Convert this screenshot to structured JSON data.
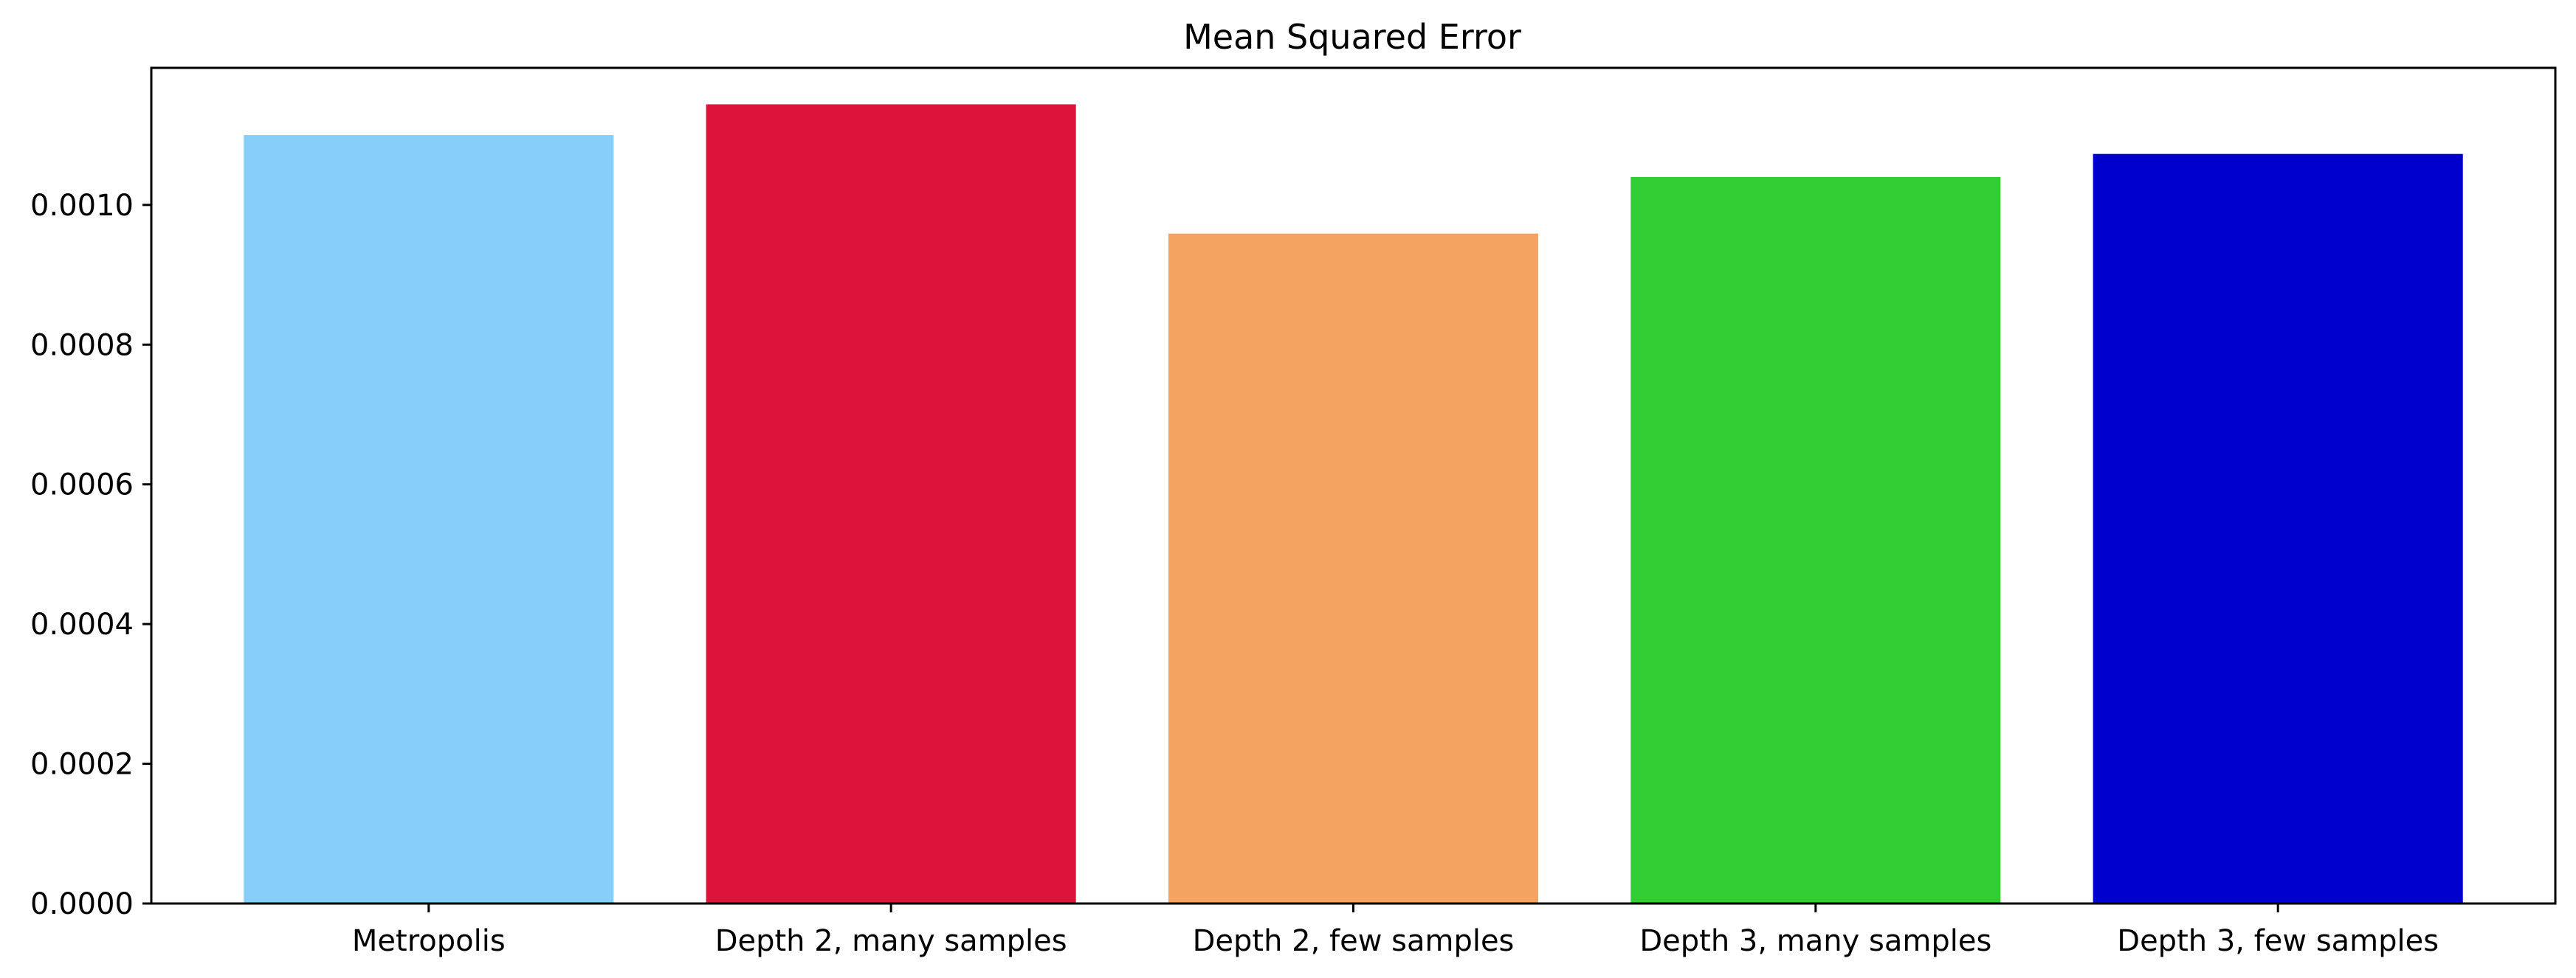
{
  "chart_data": {
    "type": "bar",
    "title": "Mean Squared Error",
    "xlabel": "",
    "ylabel": "",
    "categories": [
      "Metropolis",
      "Depth 2, many samples",
      "Depth 2, few samples",
      "Depth 3, many samples",
      "Depth 3, few samples"
    ],
    "values": [
      0.0011,
      0.001144,
      0.000959,
      0.00104,
      0.001073
    ],
    "colors": [
      "#87CEFA",
      "#DC143C",
      "#F4A460",
      "#32CD32",
      "#0000CD"
    ],
    "ylim": [
      0,
      0.0011962
    ],
    "yticks": [
      0,
      0.0002,
      0.0004,
      0.0006,
      0.0008,
      0.001
    ],
    "ytick_labels": [
      "0.0000",
      "0.0002",
      "0.0004",
      "0.0006",
      "0.0008",
      "0.0010"
    ],
    "grid": false,
    "legend": "none"
  }
}
